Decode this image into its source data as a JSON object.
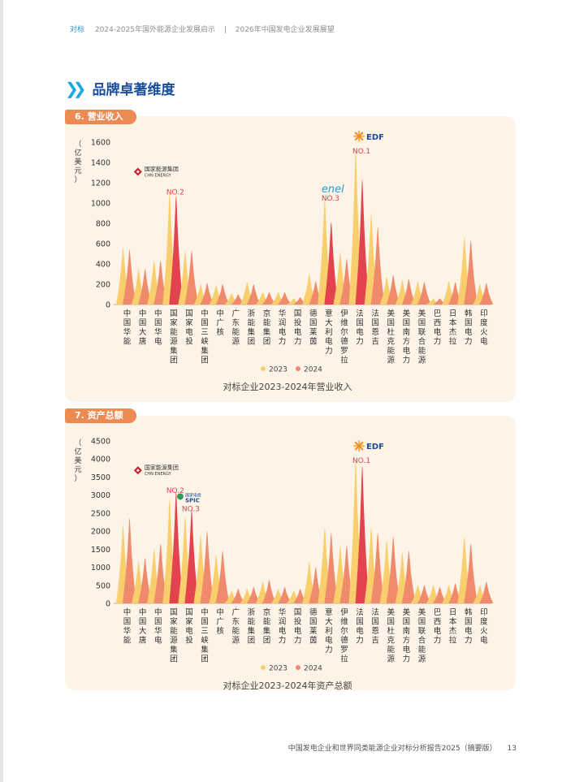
{
  "nav": {
    "active": "对标",
    "item1": "2024-2025年国外能源企业发展启示",
    "item2": "2026年中国发电企业发展展望"
  },
  "section": {
    "title": "品牌卓著维度"
  },
  "colors": {
    "y2023": "#f8cf6c",
    "y2024": "#ef8a6c",
    "highlight": "#e2434f",
    "tab": "#ec8a52",
    "title": "#1a4fa0"
  },
  "company_names": [
    "中国华能",
    "中国大唐",
    "中国华电",
    "国家能源集团",
    "国家电投",
    "中国三峡集团",
    "中广核",
    "广东能源",
    "浙能集团",
    "京能集团",
    "华润电力",
    "国投电力",
    "德国莱茵",
    "意大利电力",
    "伊维尔德罗拉",
    "法国电力",
    "法国恩吉",
    "美国杜克能源",
    "美国南方电力",
    "美国联合能源",
    "巴西电力",
    "日本杰拉",
    "韩国电力",
    "印度火电"
  ],
  "charts": [
    {
      "tab": "6. 营业收入",
      "caption": "对标企业2023-2024年营业收入",
      "ylabel": "（亿美元）",
      "legend": [
        "2023",
        "2024"
      ],
      "logos": [
        {
          "company": "国家能源集团",
          "name_cn": "国家能源集团",
          "name_en": "CHN ENERGY",
          "rank": "NO.2"
        },
        {
          "company": "意大利电力",
          "name_en": "enel",
          "rank": "NO.3"
        },
        {
          "company": "法国电力",
          "name_en": "EDF",
          "rank": "NO.1"
        }
      ],
      "chart_data": {
        "type": "bar",
        "ylim": [
          0,
          1600
        ],
        "yticks": [
          0,
          200,
          400,
          600,
          800,
          1000,
          1200,
          1400,
          1600
        ],
        "categories": [
          "中国华能",
          "中国大唐",
          "中国华电",
          "国家能源集团",
          "国家电投",
          "中国三峡集团",
          "中广核",
          "广东能源",
          "浙能集团",
          "京能集团",
          "华润电力",
          "国投电力",
          "德国莱茵",
          "意大利电力",
          "伊维尔德罗拉",
          "法国电力",
          "法国恩吉",
          "美国杜克能源",
          "美国南方电力",
          "美国联合能源",
          "巴西电力",
          "日本杰拉",
          "韩国电力",
          "印度火电"
        ],
        "series": [
          {
            "name": "2023",
            "values": [
              560,
              350,
              430,
              1100,
              520,
              200,
              190,
              110,
              220,
              120,
              120,
              60,
              300,
              1040,
              520,
              1530,
              890,
              270,
              240,
              230,
              60,
              230,
              660,
              200
            ]
          },
          {
            "name": "2024",
            "values": [
              540,
              350,
              430,
              1070,
              530,
              210,
              200,
              100,
              200,
              120,
              120,
              70,
              230,
              810,
              450,
              1230,
              760,
              290,
              250,
              220,
              60,
              220,
              630,
              210
            ]
          }
        ],
        "highlight": [
          3,
          13,
          15
        ]
      }
    },
    {
      "tab": "7. 资产总额",
      "caption": "对标企业2023-2024年资产总额",
      "ylabel": "（亿美元）",
      "legend": [
        "2023",
        "2024"
      ],
      "logos": [
        {
          "company": "国家能源集团",
          "name_cn": "国家能源集团",
          "name_en": "CHN ENERGY",
          "rank": "NO.2"
        },
        {
          "company": "国家电投",
          "name_cn": "国家电投",
          "name_en": "SPIC",
          "rank": "NO.3"
        },
        {
          "company": "法国电力",
          "name_en": "EDF",
          "rank": "NO.1"
        }
      ],
      "chart_data": {
        "type": "bar",
        "ylim": [
          0,
          4500
        ],
        "yticks": [
          0,
          500,
          1000,
          1500,
          2000,
          2500,
          3000,
          3500,
          4000,
          4500
        ],
        "categories": [
          "中国华能",
          "中国大唐",
          "中国华电",
          "国家能源集团",
          "国家电投",
          "中国三峡集团",
          "中广核",
          "广东能源",
          "浙能集团",
          "京能集团",
          "华润电力",
          "国投电力",
          "德国莱茵",
          "意大利电力",
          "伊维尔德罗拉",
          "法国电力",
          "法国恩吉",
          "美国杜克能源",
          "美国南方电力",
          "美国联合能源",
          "巴西电力",
          "日本杰拉",
          "韩国电力",
          "印度火电"
        ],
        "series": [
          {
            "name": "2023",
            "values": [
              2150,
              1150,
              1500,
              2900,
              2400,
              1900,
              1350,
              350,
              400,
              600,
              400,
              350,
              1150,
              2100,
              1600,
              4000,
              2100,
              1750,
              1400,
              500,
              500,
              500,
              1850,
              500
            ]
          },
          {
            "name": "2024",
            "values": [
              2350,
              1250,
              1650,
              3100,
              2600,
              2000,
              1450,
              400,
              450,
              650,
              450,
              400,
              1000,
              1950,
              1600,
              3800,
              1950,
              1850,
              1450,
              500,
              450,
              550,
              1650,
              600
            ]
          }
        ],
        "highlight": [
          3,
          4,
          15
        ]
      }
    }
  ],
  "footer": {
    "report": "中国发电企业和世界同类能源企业对标分析报告2025（摘要版）",
    "page": "13"
  }
}
